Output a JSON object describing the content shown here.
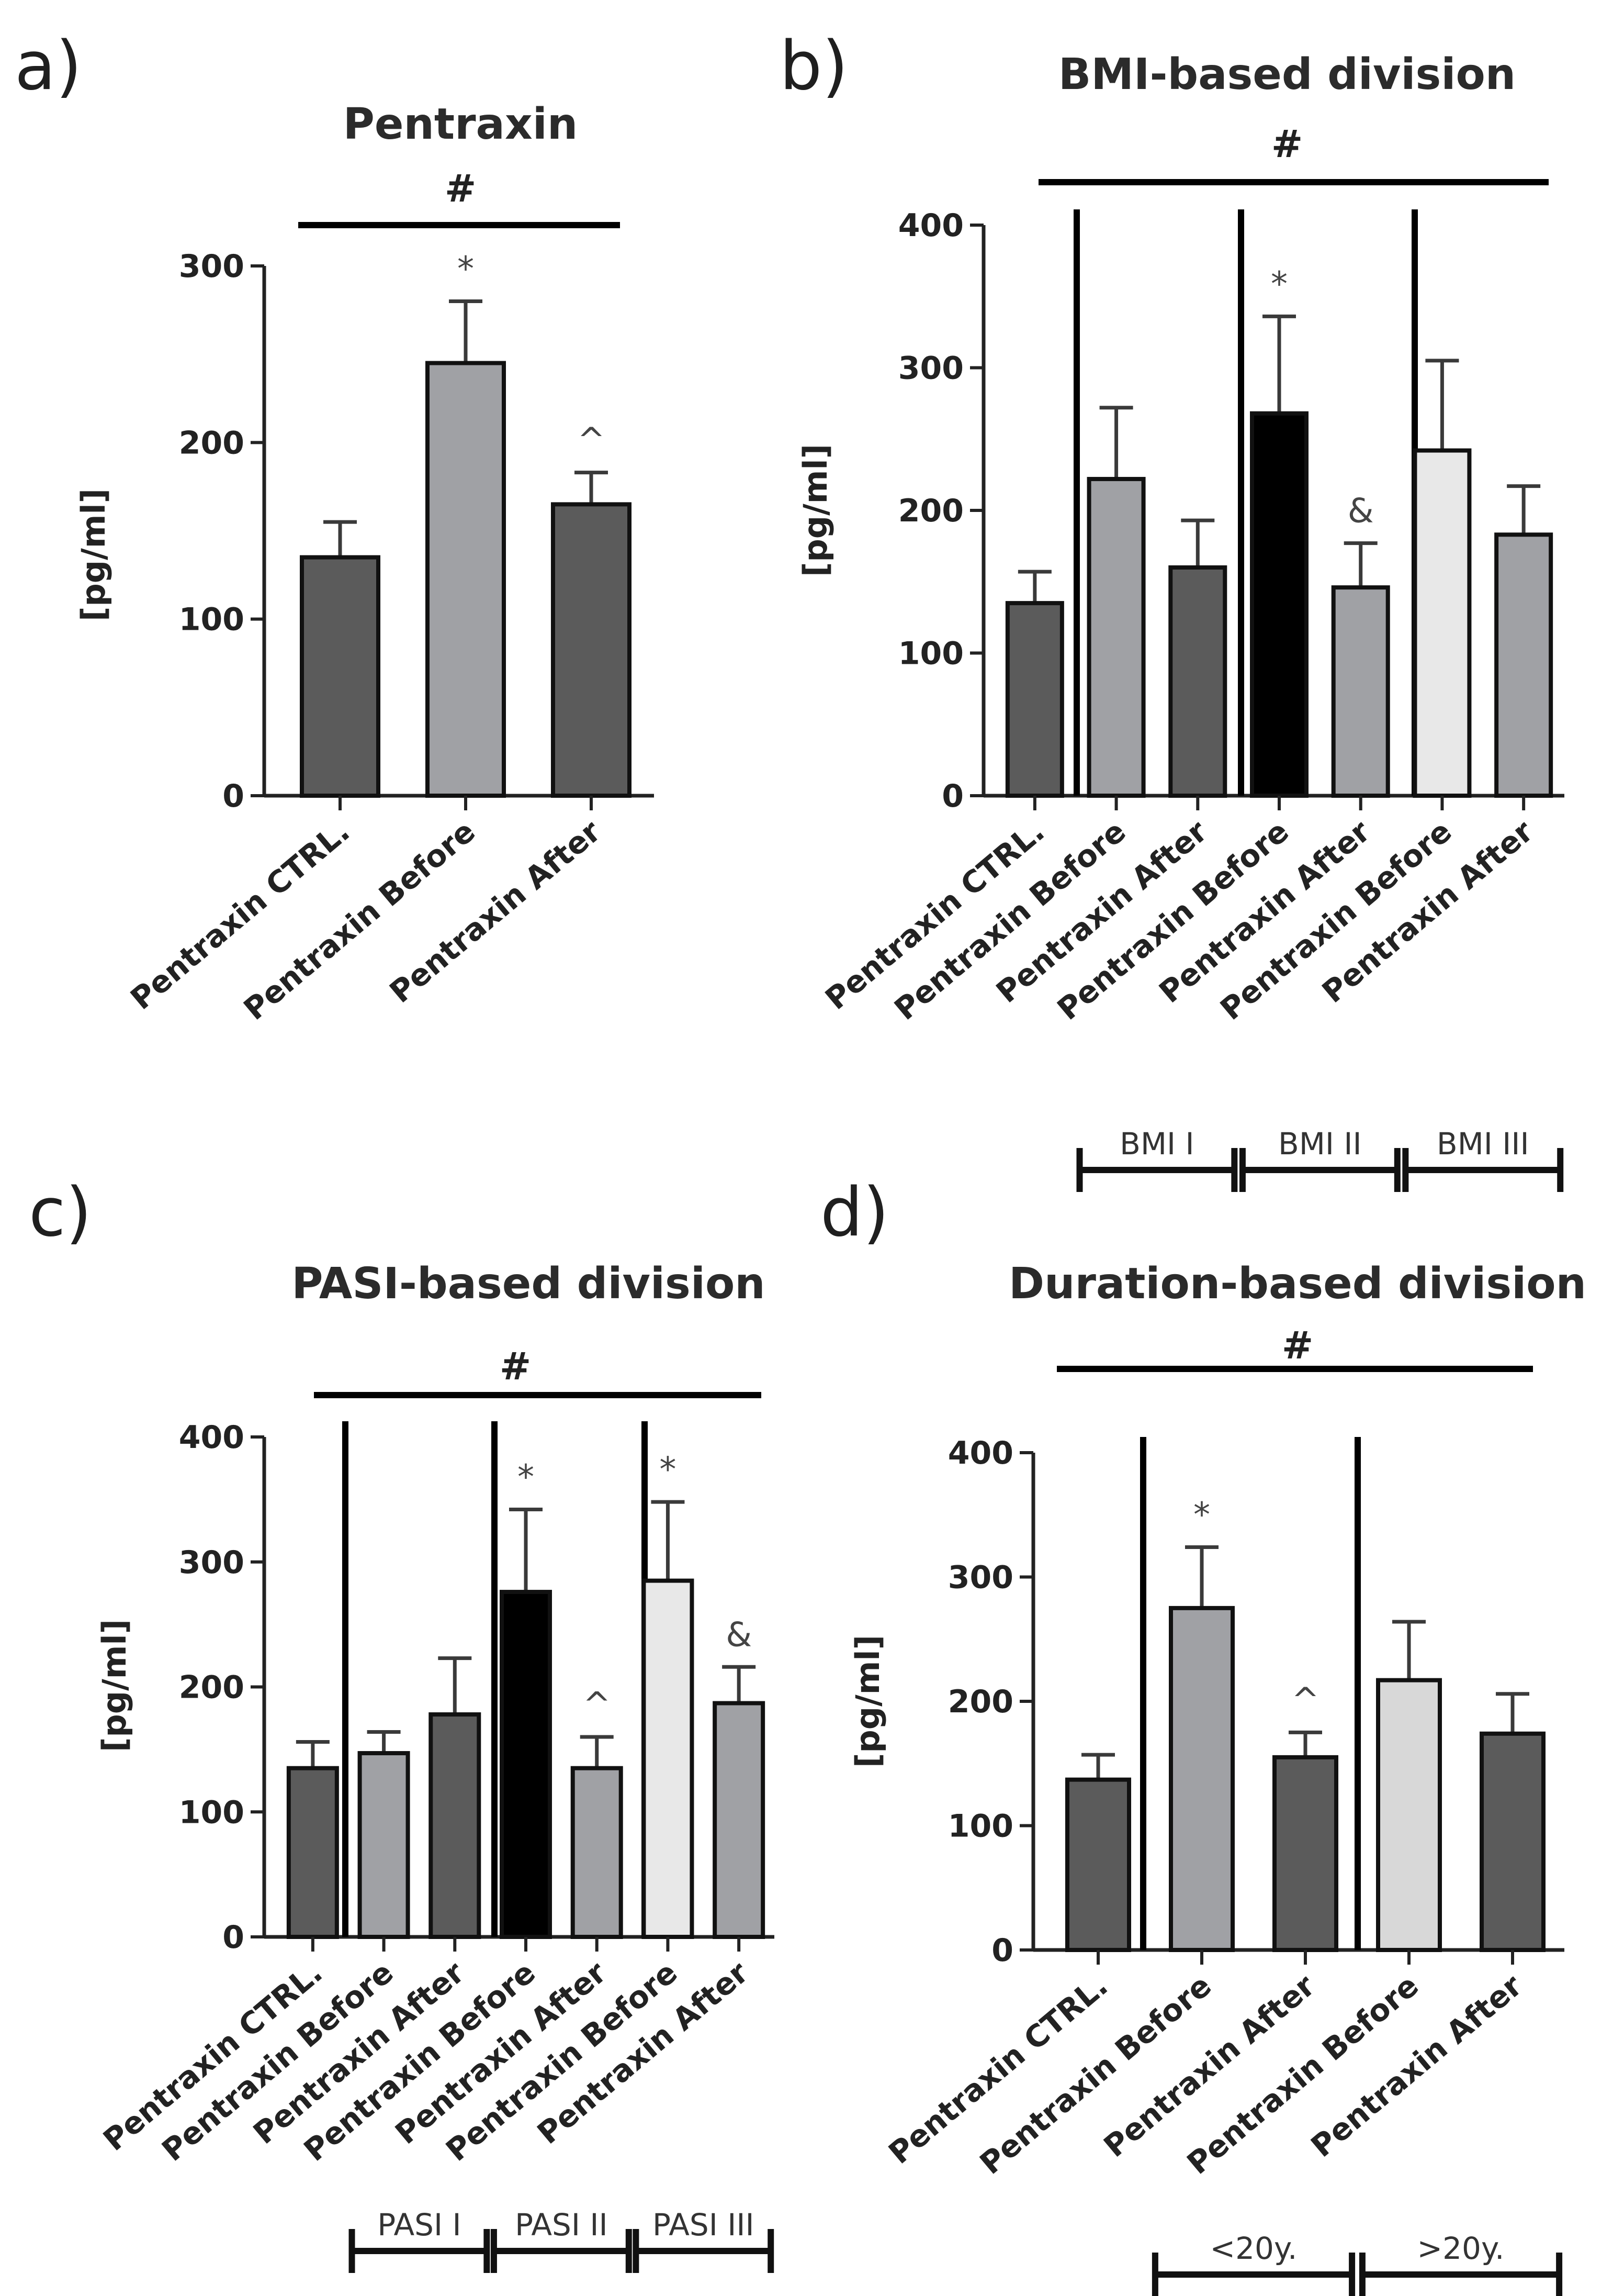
{
  "chart_data": [
    {
      "panel": "a)",
      "type": "bar",
      "title": "Pentraxin",
      "significance_label": "#",
      "ylabel": "[pg/ml]",
      "ylim": [
        0,
        300
      ],
      "yticks": [
        "0",
        "100",
        "200",
        "300"
      ],
      "categories": [
        "Pentraxin CTRL.",
        "Pentraxin Before",
        "Pentraxin After"
      ],
      "values": [
        135,
        245,
        165
      ],
      "errors": [
        20,
        35,
        18
      ],
      "fills": [
        "#5b5b5b",
        "#a0a1a5",
        "#5b5b5b"
      ],
      "annotations": [
        "",
        "*",
        "^"
      ],
      "groups": []
    },
    {
      "panel": "b)",
      "type": "bar",
      "title": "BMI-based division",
      "significance_label": "#",
      "ylabel": "[pg/ml]",
      "ylim": [
        0,
        400
      ],
      "yticks": [
        "0",
        "100",
        "200",
        "300",
        "400"
      ],
      "categories": [
        "Pentraxin CTRL.",
        "Pentraxin Before",
        "Pentraxin After",
        "Pentraxin Before",
        "Pentraxin After",
        "Pentraxin Before",
        "Pentraxin After"
      ],
      "values": [
        135,
        222,
        160,
        268,
        146,
        242,
        183
      ],
      "errors": [
        22,
        50,
        33,
        68,
        31,
        63,
        34
      ],
      "fills": [
        "#5b5b5b",
        "#a0a1a5",
        "#5b5b5b",
        "#000000",
        "#a0a1a5",
        "#e8e8e8",
        "#a0a1a5"
      ],
      "annotations": [
        "",
        "",
        "",
        "*",
        "&",
        "",
        ""
      ],
      "groups": [
        {
          "label": "BMI I",
          "from": 1,
          "to": 2
        },
        {
          "label": "BMI II",
          "from": 3,
          "to": 4
        },
        {
          "label": "BMI III",
          "from": 5,
          "to": 6
        }
      ]
    },
    {
      "panel": "c)",
      "type": "bar",
      "title": "PASI-based division",
      "significance_label": "#",
      "ylabel": "[pg/ml]",
      "ylim": [
        0,
        400
      ],
      "yticks": [
        "0",
        "100",
        "200",
        "300",
        "400"
      ],
      "categories": [
        "Pentraxin CTRL.",
        "Pentraxin Before",
        "Pentraxin After",
        "Pentraxin Before",
        "Pentraxin After",
        "Pentraxin Before",
        "Pentraxin After"
      ],
      "values": [
        135,
        147,
        178,
        276,
        135,
        285,
        187
      ],
      "errors": [
        21,
        17,
        45,
        66,
        25,
        63,
        29
      ],
      "fills": [
        "#5b5b5b",
        "#a0a1a5",
        "#5b5b5b",
        "#000000",
        "#a0a1a5",
        "#e8e8e8",
        "#a0a1a5"
      ],
      "annotations": [
        "",
        "",
        "",
        "*",
        "^",
        "*",
        "&"
      ],
      "groups": [
        {
          "label": "PASI I",
          "from": 1,
          "to": 2
        },
        {
          "label": "PASI II",
          "from": 3,
          "to": 4
        },
        {
          "label": "PASI III",
          "from": 5,
          "to": 6
        }
      ]
    },
    {
      "panel": "d)",
      "type": "bar",
      "title": "Duration-based division",
      "significance_label": "#",
      "ylabel": "[pg/ml]",
      "ylim": [
        0,
        400
      ],
      "yticks": [
        "0",
        "100",
        "200",
        "300",
        "400"
      ],
      "categories": [
        "Pentraxin CTRL.",
        "Pentraxin Before",
        "Pentraxin After",
        "Pentraxin Before",
        "Pentraxin After"
      ],
      "values": [
        137,
        275,
        155,
        217,
        174
      ],
      "errors": [
        20,
        49,
        20,
        47,
        32
      ],
      "fills": [
        "#5b5b5b",
        "#a0a1a5",
        "#5b5b5b",
        "#d8d8d8",
        "#5b5b5b"
      ],
      "annotations": [
        "",
        "*",
        "^",
        "",
        ""
      ],
      "groups": [
        {
          "label": "<20y.",
          "from": 1,
          "to": 2
        },
        {
          "label": ">20y.",
          "from": 3,
          "to": 4
        }
      ]
    }
  ]
}
